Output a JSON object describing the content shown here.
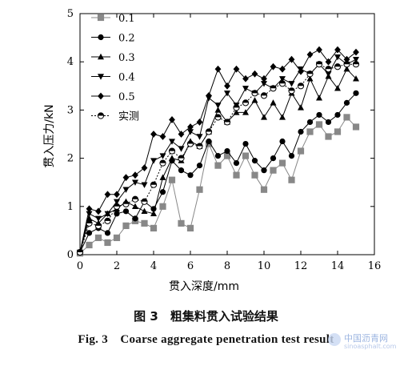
{
  "chart_data": {
    "type": "line",
    "xlabel": "贯入深度/mm",
    "ylabel": "贯入压力/kN",
    "xlim": [
      0,
      16
    ],
    "ylim": [
      0,
      5
    ],
    "xticks": [
      0,
      2,
      4,
      6,
      8,
      10,
      12,
      14,
      16
    ],
    "yticks": [
      0,
      1,
      2,
      3,
      4,
      5
    ],
    "legend_position": "top-left",
    "grid": false,
    "series": [
      {
        "name": "0.1",
        "marker": "square",
        "color": "#888888",
        "x": [
          0,
          0.5,
          1,
          1.5,
          2,
          2.5,
          3,
          3.5,
          4,
          4.5,
          5,
          5.5,
          6,
          6.5,
          7,
          7.5,
          8,
          8.5,
          9,
          9.5,
          10,
          10.5,
          11,
          11.5,
          12,
          12.5,
          13,
          13.5,
          14,
          14.5,
          15
        ],
        "y": [
          0.03,
          0.2,
          0.35,
          0.25,
          0.35,
          0.6,
          0.7,
          0.65,
          0.55,
          1.0,
          1.55,
          0.65,
          0.55,
          1.35,
          2.3,
          1.85,
          2.05,
          1.65,
          2.05,
          1.65,
          1.35,
          1.75,
          1.9,
          1.55,
          2.15,
          2.55,
          2.7,
          2.45,
          2.55,
          2.85,
          2.65
        ]
      },
      {
        "name": "0.2",
        "marker": "circle",
        "color": "#000000",
        "x": [
          0,
          0.5,
          1,
          1.5,
          2,
          2.5,
          3,
          3.5,
          4,
          4.5,
          5,
          5.5,
          6,
          6.5,
          7,
          7.5,
          8,
          8.5,
          9,
          9.5,
          10,
          10.5,
          11,
          11.5,
          12,
          12.5,
          13,
          13.5,
          14,
          14.5,
          15
        ],
        "y": [
          0.05,
          0.45,
          0.55,
          0.45,
          0.85,
          0.9,
          0.75,
          1.1,
          0.95,
          1.3,
          1.95,
          1.75,
          1.65,
          1.85,
          2.35,
          2.05,
          2.15,
          1.9,
          2.3,
          1.95,
          1.75,
          2.0,
          2.35,
          2.05,
          2.55,
          2.75,
          2.9,
          2.75,
          2.9,
          3.15,
          3.35
        ]
      },
      {
        "name": "0.3",
        "marker": "triangle-up",
        "color": "#000000",
        "x": [
          0,
          0.5,
          1,
          1.5,
          2,
          2.5,
          3,
          3.5,
          4,
          4.5,
          5,
          5.5,
          6,
          6.5,
          7,
          7.5,
          8,
          8.5,
          9,
          9.5,
          10,
          10.5,
          11,
          11.5,
          12,
          12.5,
          13,
          13.5,
          14,
          14.5,
          15
        ],
        "y": [
          0.05,
          0.75,
          0.65,
          0.85,
          0.95,
          1.1,
          1.0,
          0.9,
          0.85,
          1.6,
          2.0,
          1.95,
          2.35,
          2.25,
          2.55,
          3.0,
          2.75,
          2.95,
          2.95,
          3.2,
          2.85,
          3.15,
          2.85,
          3.35,
          3.05,
          3.65,
          3.25,
          3.7,
          3.45,
          3.85,
          3.65
        ]
      },
      {
        "name": "0.4",
        "marker": "triangle-down",
        "color": "#000000",
        "x": [
          0,
          0.5,
          1,
          1.5,
          2,
          2.5,
          3,
          3.5,
          4,
          4.5,
          5,
          5.5,
          6,
          6.5,
          7,
          7.5,
          8,
          8.5,
          9,
          9.5,
          10,
          10.5,
          11,
          11.5,
          12,
          12.5,
          13,
          13.5,
          14,
          14.5,
          15
        ],
        "y": [
          0.05,
          0.85,
          0.75,
          0.85,
          1.1,
          1.35,
          1.5,
          1.45,
          1.95,
          2.05,
          2.35,
          2.2,
          2.55,
          2.45,
          3.25,
          3.1,
          3.35,
          3.1,
          3.45,
          3.35,
          3.55,
          3.45,
          3.65,
          3.55,
          3.85,
          3.75,
          3.95,
          3.75,
          4.1,
          3.95,
          4.05
        ]
      },
      {
        "name": "0.5",
        "marker": "diamond",
        "color": "#000000",
        "x": [
          0,
          0.5,
          1,
          1.5,
          2,
          2.5,
          3,
          3.5,
          4,
          4.5,
          5,
          5.5,
          6,
          6.5,
          7,
          7.5,
          8,
          8.5,
          9,
          9.5,
          10,
          10.5,
          11,
          11.5,
          12,
          12.5,
          13,
          13.5,
          14,
          14.5,
          15
        ],
        "y": [
          0.05,
          0.95,
          0.9,
          1.25,
          1.25,
          1.6,
          1.65,
          1.8,
          2.5,
          2.45,
          2.8,
          2.5,
          2.65,
          2.75,
          3.3,
          3.85,
          3.5,
          3.85,
          3.65,
          3.75,
          3.65,
          3.9,
          3.85,
          4.05,
          3.8,
          4.15,
          4.25,
          4.0,
          4.25,
          4.05,
          4.2
        ]
      },
      {
        "name": "实测",
        "marker": "half-circle",
        "color": "#000000",
        "dashed": true,
        "x": [
          0,
          0.5,
          1,
          1.5,
          2,
          2.5,
          3,
          3.5,
          4,
          4.5,
          5,
          5.5,
          6,
          6.5,
          7,
          7.5,
          8,
          8.5,
          9,
          9.5,
          10,
          10.5,
          11,
          11.5,
          12,
          12.5,
          13,
          13.5,
          14,
          14.5,
          15
        ],
        "y": [
          0.05,
          0.65,
          0.6,
          0.7,
          1.0,
          1.05,
          1.15,
          1.1,
          1.45,
          1.9,
          2.15,
          2.0,
          2.3,
          2.25,
          2.55,
          2.85,
          2.75,
          3.05,
          3.15,
          3.35,
          3.3,
          3.45,
          3.55,
          3.4,
          3.5,
          3.75,
          3.95,
          3.85,
          3.9,
          3.95,
          3.95
        ]
      }
    ]
  },
  "caption": {
    "cn": "图 3　粗集料贯入试验结果",
    "en": "Fig. 3　Coarse aggregate penetration test result"
  },
  "watermark": {
    "text": "中国沥青网",
    "sub": "sinoasphalt.com"
  }
}
